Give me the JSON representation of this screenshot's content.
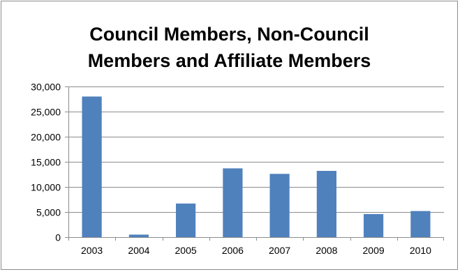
{
  "chart_data": {
    "type": "bar",
    "title_lines": [
      "Council Members, Non-Council",
      "Members and Affiliate Members"
    ],
    "categories": [
      "2003",
      "2004",
      "2005",
      "2006",
      "2007",
      "2008",
      "2009",
      "2010"
    ],
    "values": [
      28000,
      500,
      6700,
      13700,
      12600,
      13200,
      4600,
      5200
    ],
    "ylim": [
      0,
      30000
    ],
    "yticks": [
      0,
      5000,
      10000,
      15000,
      20000,
      25000,
      30000
    ],
    "ytick_labels": [
      "0",
      "5,000",
      "10,000",
      "15,000",
      "20,000",
      "25,000",
      "30,000"
    ],
    "grid": true,
    "legend": "none",
    "colors": {
      "bar": "#4f81bd",
      "grid": "#8c8c8c"
    }
  }
}
